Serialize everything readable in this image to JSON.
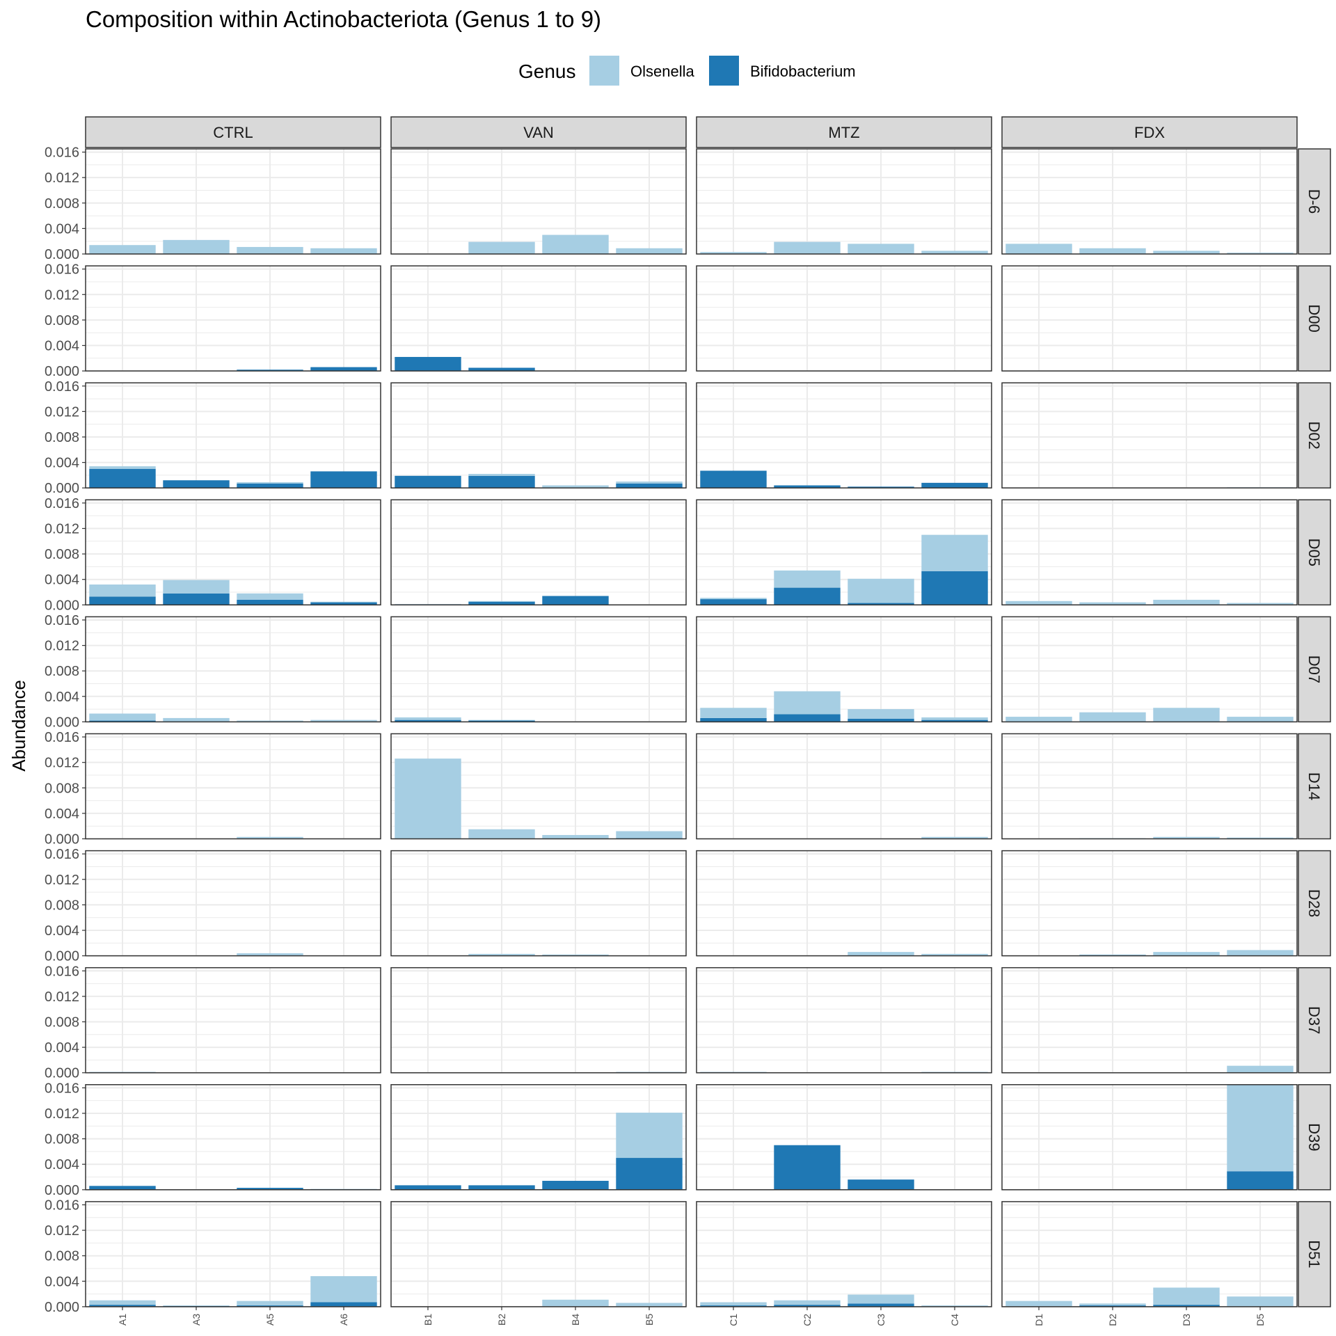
{
  "chart_data": {
    "type": "bar",
    "stacked": true,
    "title": "Composition within Actinobacteriota (Genus 1 to 9)",
    "ylabel": "Abundance",
    "xlabel": "",
    "ylim": [
      0,
      0.0165
    ],
    "yticks": [
      "0.000",
      "0.004",
      "0.008",
      "0.012",
      "0.016"
    ],
    "ytick_values": [
      0,
      0.004,
      0.008,
      0.012,
      0.016
    ],
    "legend": {
      "title": "Genus",
      "position": "top",
      "entries": [
        {
          "name": "Olsenella",
          "color": "#a6cee3"
        },
        {
          "name": "Bifidobacterium",
          "color": "#1f78b4"
        }
      ]
    },
    "grid": true,
    "facet_columns": [
      {
        "name": "CTRL",
        "samples": [
          "A1",
          "A3",
          "A5",
          "A6"
        ]
      },
      {
        "name": "VAN",
        "samples": [
          "B1",
          "B2",
          "B4",
          "B5"
        ]
      },
      {
        "name": "MTZ",
        "samples": [
          "C1",
          "C2",
          "C3",
          "C4"
        ]
      },
      {
        "name": "FDX",
        "samples": [
          "D1",
          "D2",
          "D3",
          "D5"
        ]
      }
    ],
    "facet_rows": [
      "D-6",
      "D00",
      "D02",
      "D05",
      "D07",
      "D14",
      "D28",
      "D37",
      "D39",
      "D51"
    ],
    "series_order": [
      "Bifidobacterium",
      "Olsenella"
    ],
    "panels": {
      "D-6": {
        "CTRL": {
          "Bifidobacterium": [
            0,
            0,
            0,
            0
          ],
          "Olsenella": [
            0.0014,
            0.0022,
            0.0011,
            0.0009
          ]
        },
        "VAN": {
          "Bifidobacterium": [
            0,
            0,
            0,
            0
          ],
          "Olsenella": [
            0,
            0.0019,
            0.003,
            0.0009
          ]
        },
        "MTZ": {
          "Bifidobacterium": [
            0,
            0,
            0,
            0
          ],
          "Olsenella": [
            0.0003,
            0.0019,
            0.0016,
            0.0005
          ]
        },
        "FDX": {
          "Bifidobacterium": [
            0,
            0,
            0,
            0
          ],
          "Olsenella": [
            0.0016,
            0.0009,
            0.0005,
            0.0002
          ]
        }
      },
      "D00": {
        "CTRL": {
          "Bifidobacterium": [
            0,
            0,
            0.0002,
            0.0006
          ],
          "Olsenella": [
            0,
            0,
            0,
            0
          ]
        },
        "VAN": {
          "Bifidobacterium": [
            0.0022,
            0.0005,
            0,
            0
          ],
          "Olsenella": [
            0,
            0,
            0,
            0
          ]
        },
        "MTZ": {
          "Bifidobacterium": [
            0,
            0,
            0,
            0
          ],
          "Olsenella": [
            0,
            0,
            0,
            0
          ]
        },
        "FDX": {
          "Bifidobacterium": [
            0,
            0,
            0,
            0
          ],
          "Olsenella": [
            0,
            0,
            0,
            0
          ]
        }
      },
      "D02": {
        "CTRL": {
          "Bifidobacterium": [
            0.003,
            0.0012,
            0.0007,
            0.0026
          ],
          "Olsenella": [
            0.0004,
            0,
            0.0002,
            0
          ]
        },
        "VAN": {
          "Bifidobacterium": [
            0.0019,
            0.0019,
            0,
            0.0007
          ],
          "Olsenella": [
            0,
            0.0003,
            0.0004,
            0.0003
          ]
        },
        "MTZ": {
          "Bifidobacterium": [
            0.0027,
            0.0004,
            0.0002,
            0.0008
          ],
          "Olsenella": [
            0,
            0,
            0,
            0
          ]
        },
        "FDX": {
          "Bifidobacterium": [
            0,
            0,
            0,
            0
          ],
          "Olsenella": [
            0,
            0,
            0,
            0.0001
          ]
        }
      },
      "D05": {
        "CTRL": {
          "Bifidobacterium": [
            0.0013,
            0.0018,
            0.0008,
            0.0004
          ],
          "Olsenella": [
            0.0019,
            0.0021,
            0.001,
            0.0001
          ]
        },
        "VAN": {
          "Bifidobacterium": [
            0.0001,
            0.0005,
            0.0014,
            0
          ],
          "Olsenella": [
            0,
            0.0001,
            0,
            0
          ]
        },
        "MTZ": {
          "Bifidobacterium": [
            0.0009,
            0.0027,
            0.0003,
            0.0053
          ],
          "Olsenella": [
            0.0002,
            0.0027,
            0.0038,
            0.0057
          ]
        },
        "FDX": {
          "Bifidobacterium": [
            0,
            0,
            0,
            0
          ],
          "Olsenella": [
            0.0006,
            0.0004,
            0.0008,
            0.0003
          ]
        }
      },
      "D07": {
        "CTRL": {
          "Bifidobacterium": [
            0.0002,
            0,
            0,
            0
          ],
          "Olsenella": [
            0.0011,
            0.0006,
            0.0002,
            0.0003
          ]
        },
        "VAN": {
          "Bifidobacterium": [
            0.0003,
            0.0002,
            0,
            0
          ],
          "Olsenella": [
            0.0004,
            0.0001,
            0,
            0
          ]
        },
        "MTZ": {
          "Bifidobacterium": [
            0.0006,
            0.0012,
            0.0005,
            0.0003
          ],
          "Olsenella": [
            0.0016,
            0.0036,
            0.0015,
            0.0004
          ]
        },
        "FDX": {
          "Bifidobacterium": [
            0,
            0,
            0,
            0
          ],
          "Olsenella": [
            0.0008,
            0.0015,
            0.0022,
            0.0008
          ]
        }
      },
      "D14": {
        "CTRL": {
          "Bifidobacterium": [
            0,
            0,
            0,
            0
          ],
          "Olsenella": [
            0,
            0,
            0.0003,
            0
          ]
        },
        "VAN": {
          "Bifidobacterium": [
            0,
            0,
            0,
            0.0001
          ],
          "Olsenella": [
            0.0126,
            0.0015,
            0.0006,
            0.0011
          ]
        },
        "MTZ": {
          "Bifidobacterium": [
            0,
            0,
            0,
            0
          ],
          "Olsenella": [
            0,
            0,
            0,
            0.0003
          ]
        },
        "FDX": {
          "Bifidobacterium": [
            0,
            0,
            0,
            0
          ],
          "Olsenella": [
            0,
            0.0001,
            0.0003,
            0.0002
          ]
        }
      },
      "D28": {
        "CTRL": {
          "Bifidobacterium": [
            0,
            0,
            0,
            0
          ],
          "Olsenella": [
            0,
            0,
            0.0004,
            0
          ]
        },
        "VAN": {
          "Bifidobacterium": [
            0,
            0,
            0,
            0
          ],
          "Olsenella": [
            0,
            0.0003,
            0.0002,
            0
          ]
        },
        "MTZ": {
          "Bifidobacterium": [
            0,
            0,
            0,
            0
          ],
          "Olsenella": [
            0,
            0,
            0.0006,
            0.0003
          ]
        },
        "FDX": {
          "Bifidobacterium": [
            0,
            0.0001,
            0,
            0
          ],
          "Olsenella": [
            0,
            0.0001,
            0.0006,
            0.0009
          ]
        }
      },
      "D37": {
        "CTRL": {
          "Bifidobacterium": [
            0.0001,
            0,
            0,
            0
          ],
          "Olsenella": [
            0,
            0,
            0,
            0
          ]
        },
        "VAN": {
          "Bifidobacterium": [
            0,
            0,
            0,
            0.0001
          ],
          "Olsenella": [
            0,
            0,
            0,
            0
          ]
        },
        "MTZ": {
          "Bifidobacterium": [
            0.0001,
            0,
            0,
            0.0001
          ],
          "Olsenella": [
            0,
            0,
            0,
            0
          ]
        },
        "FDX": {
          "Bifidobacterium": [
            0,
            0,
            0,
            0
          ],
          "Olsenella": [
            0,
            0,
            0,
            0.0011
          ]
        }
      },
      "D39": {
        "CTRL": {
          "Bifidobacterium": [
            0.0006,
            0,
            0.0003,
            0.0001
          ],
          "Olsenella": [
            0,
            0,
            0,
            0
          ]
        },
        "VAN": {
          "Bifidobacterium": [
            0.0007,
            0.0007,
            0.0014,
            0.005
          ],
          "Olsenella": [
            0,
            0,
            0,
            0.0071
          ]
        },
        "MTZ": {
          "Bifidobacterium": [
            0,
            0.007,
            0.0016,
            0
          ],
          "Olsenella": [
            0,
            0,
            0,
            0
          ]
        },
        "FDX": {
          "Bifidobacterium": [
            0,
            0,
            0,
            0.0029
          ],
          "Olsenella": [
            0,
            0,
            0,
            0.0136
          ]
        }
      },
      "D51": {
        "CTRL": {
          "Bifidobacterium": [
            0.0003,
            0.0001,
            0.0002,
            0.0007
          ],
          "Olsenella": [
            0.0007,
            0.0001,
            0.0007,
            0.0041
          ]
        },
        "VAN": {
          "Bifidobacterium": [
            0,
            0,
            0,
            0
          ],
          "Olsenella": [
            0,
            0,
            0.0011,
            0.0006
          ]
        },
        "MTZ": {
          "Bifidobacterium": [
            0.0002,
            0.0003,
            0.0005,
            0
          ],
          "Olsenella": [
            0.0005,
            0.0007,
            0.0014,
            0.0002
          ]
        },
        "FDX": {
          "Bifidobacterium": [
            0,
            0.0002,
            0.0003,
            0
          ],
          "Olsenella": [
            0.0009,
            0.0003,
            0.0027,
            0.0016
          ]
        }
      }
    }
  }
}
